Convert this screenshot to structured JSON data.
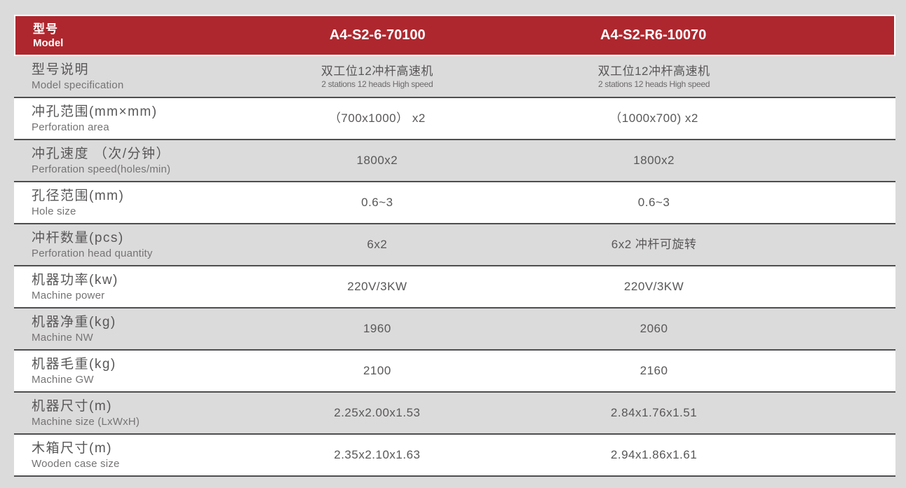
{
  "page": {
    "background_color": "#dcdbdb",
    "accent_red": "#ae272e",
    "divider_color": "#4e4e50"
  },
  "table": {
    "header": {
      "label_cn": "型号",
      "label_en": "Model",
      "model_1": "A4-S2-6-70100",
      "model_2": "A4-S2-R6-10070"
    },
    "rows": [
      {
        "label_cn": "型号说明",
        "label_en": "Model specification",
        "v1_main": "双工位12冲杆高速机",
        "v1_sub": "2 stations 12 heads High speed",
        "v2_main": "双工位12冲杆高速机",
        "v2_sub": "2 stations 12 heads High speed",
        "shaded": true
      },
      {
        "label_cn": "冲孔范围(mm×mm)",
        "label_en": "Perforation  area",
        "v1_main": "（700x1000） x2",
        "v2_main": "（1000x700) x2",
        "shaded": false
      },
      {
        "label_cn": "冲孔速度 （次/分钟）",
        "label_en": "Perforation speed(holes/min)",
        "v1_main": "1800x2",
        "v2_main": "1800x2",
        "shaded": true
      },
      {
        "label_cn": "孔径范围(mm)",
        "label_en": "Hole size",
        "v1_main": "0.6~3",
        "v2_main": "0.6~3",
        "shaded": false
      },
      {
        "label_cn": "冲杆数量(pcs)",
        "label_en": "Perforation head quantity",
        "v1_main": "6x2",
        "v2_main": "6x2 冲杆可旋转",
        "shaded": true
      },
      {
        "label_cn": "机器功率(kw)",
        "label_en": "Machine power",
        "v1_main": "220V/3KW",
        "v2_main": "220V/3KW",
        "shaded": false
      },
      {
        "label_cn": "机器净重(kg)",
        "label_en": "Machine NW",
        "v1_main": "1960",
        "v2_main": "2060",
        "shaded": true
      },
      {
        "label_cn": "机器毛重(kg)",
        "label_en": "Machine GW",
        "v1_main": "2100",
        "v2_main": "2160",
        "shaded": false
      },
      {
        "label_cn": "机器尺寸(m)",
        "label_en": "Machine size (LxWxH)",
        "v1_main": "2.25x2.00x1.53",
        "v2_main": "2.84x1.76x1.51",
        "shaded": true
      },
      {
        "label_cn": "木箱尺寸(m)",
        "label_en": "Wooden case size",
        "v1_main": "2.35x2.10x1.63",
        "v2_main": "2.94x1.86x1.61",
        "shaded": false
      }
    ]
  }
}
